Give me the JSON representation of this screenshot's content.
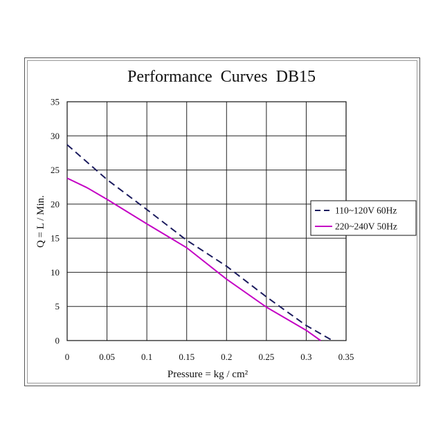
{
  "chart_data": {
    "type": "line",
    "title": "Performance Curves DB15",
    "xlabel": "Pressure = kg / cm²",
    "ylabel": "Q = L / Min.",
    "xlim": [
      0,
      0.35
    ],
    "ylim": [
      0,
      35
    ],
    "x_ticks": [
      0,
      0.05,
      0.1,
      0.15,
      0.2,
      0.25,
      0.3,
      0.35
    ],
    "y_ticks": [
      0,
      5,
      10,
      15,
      20,
      25,
      30,
      35
    ],
    "grid": true,
    "legend_position": "right",
    "series": [
      {
        "name": "110~120V 60Hz",
        "color": "#1b1b5e",
        "style": "dashed",
        "points": [
          [
            0,
            28.7
          ],
          [
            0.05,
            23.6
          ],
          [
            0.1,
            19.2
          ],
          [
            0.15,
            14.7
          ],
          [
            0.2,
            10.9
          ],
          [
            0.25,
            6.4
          ],
          [
            0.3,
            2.2
          ],
          [
            0.333,
            0
          ]
        ]
      },
      {
        "name": "220~240V 50Hz",
        "color": "#c400c4",
        "style": "solid",
        "points": [
          [
            0,
            23.8
          ],
          [
            0.025,
            22.4
          ],
          [
            0.05,
            20.7
          ],
          [
            0.1,
            17.1
          ],
          [
            0.15,
            13.6
          ],
          [
            0.2,
            9.0
          ],
          [
            0.25,
            4.9
          ],
          [
            0.3,
            1.5
          ],
          [
            0.318,
            0
          ]
        ]
      }
    ]
  }
}
